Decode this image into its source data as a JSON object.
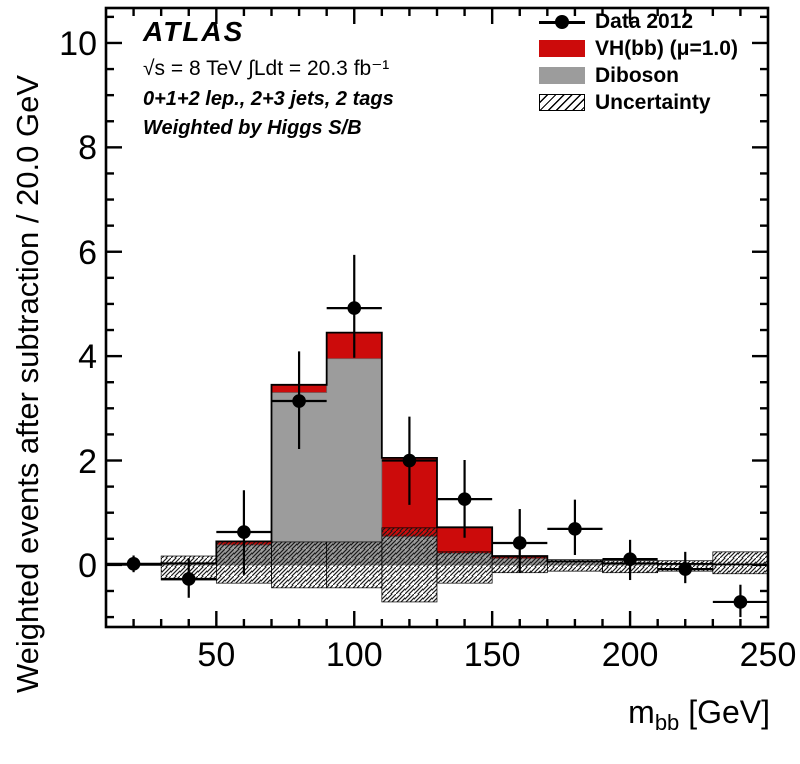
{
  "annotations": {
    "experiment": "ATLAS",
    "luminosity": "√s = 8 TeV  ∫Ldt = 20.3 fb⁻¹",
    "selection": "0+1+2 lep., 2+3 jets, 2 tags",
    "weighting": "Weighted by Higgs S/B"
  },
  "colors": {
    "vh_red": "#cc0b0b",
    "diboson_gray": "#9c9c9c",
    "data_black": "#000000",
    "hatch_line": "#1a1a1a"
  },
  "chart_data": {
    "type": "bar",
    "title": "",
    "xlabel": "m_bb [GeV]",
    "xlabel_parts": {
      "prefix": "m",
      "sub": "bb",
      "suffix": " [GeV]"
    },
    "ylabel": "Weighted events after subtraction / 20.0 GeV",
    "xlim": [
      10,
      250
    ],
    "ylim": [
      -1.19,
      10.67
    ],
    "grid": false,
    "legend_position": "top-right",
    "x_major_ticks": [
      50,
      100,
      150,
      200,
      250
    ],
    "x_tick_labels": [
      "50",
      "100",
      "150",
      "200",
      "250"
    ],
    "x_minor_step": 10,
    "y_major_ticks": [
      0,
      2,
      4,
      6,
      8,
      10
    ],
    "y_tick_labels": [
      "0",
      "2",
      "4",
      "6",
      "8",
      "10"
    ],
    "y_minor_step": 0.5,
    "bin_edges": [
      10,
      30,
      50,
      70,
      90,
      110,
      130,
      150,
      170,
      190,
      210,
      230,
      250
    ],
    "series": [
      {
        "name": "Data 2012",
        "type": "points",
        "color": "#000000",
        "x": [
          20,
          40,
          60,
          80,
          100,
          120,
          140,
          160,
          180,
          200,
          220,
          240
        ],
        "y": [
          0.02,
          -0.27,
          0.63,
          3.14,
          4.92,
          2.0,
          1.26,
          0.42,
          0.69,
          0.11,
          -0.08,
          -0.71
        ],
        "yerr_up": [
          0.16,
          0.4,
          0.8,
          0.95,
          1.02,
          0.84,
          0.75,
          0.65,
          0.56,
          0.37,
          0.33,
          0.33
        ],
        "yerr_down": [
          0.16,
          0.36,
          0.82,
          0.92,
          0.95,
          0.85,
          0.74,
          0.57,
          0.5,
          0.4,
          0.27,
          0.29
        ],
        "xerr_half_width": 10
      },
      {
        "name": "VH(bb) (μ=1.0)",
        "type": "histogram",
        "role": "stacked-total",
        "color": "#cc0b0b",
        "totals": [
          0.0,
          0.03,
          0.45,
          3.45,
          4.45,
          2.05,
          0.72,
          0.17,
          0.07,
          0.03,
          0.02,
          0.01
        ]
      },
      {
        "name": "Diboson",
        "type": "histogram",
        "color": "#9c9c9c",
        "values": [
          0.0,
          0.02,
          0.38,
          3.3,
          3.95,
          0.54,
          0.22,
          0.12,
          0.05,
          0.02,
          0.01,
          0.01
        ]
      },
      {
        "name": "Uncertainty",
        "type": "band",
        "hatch": "diagonal-forward",
        "top": [
          0.0,
          0.17,
          0.45,
          0.44,
          0.44,
          0.71,
          0.25,
          0.15,
          0.1,
          0.08,
          0.08,
          0.25
        ],
        "bottom": [
          0.0,
          -0.29,
          -0.35,
          -0.44,
          -0.44,
          -0.71,
          -0.35,
          -0.15,
          -0.12,
          -0.15,
          -0.12,
          -0.17
        ]
      }
    ]
  }
}
